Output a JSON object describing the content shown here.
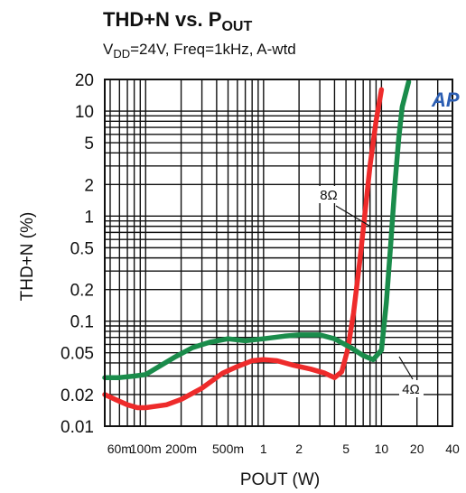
{
  "chart_data": {
    "type": "line",
    "title": "THD+N vs. P",
    "title_sub": "OUT",
    "subtitle": "V",
    "subtitle_sub": "DD",
    "subtitle_rest": "=24V, Freq=1kHz, A-wtd",
    "ylabel": "THD+N (%)",
    "xlabel": "POUT (W)",
    "xscale": "log",
    "yscale": "log",
    "xlim": [
      0.045,
      40
    ],
    "ylim": [
      0.01,
      20
    ],
    "grid": true,
    "yticks": [
      {
        "value": 20,
        "label": "20"
      },
      {
        "value": 10,
        "label": "10"
      },
      {
        "value": 5,
        "label": "5"
      },
      {
        "value": 2,
        "label": "2"
      },
      {
        "value": 1,
        "label": "1"
      },
      {
        "value": 0.5,
        "label": "0.5"
      },
      {
        "value": 0.2,
        "label": "0.2"
      },
      {
        "value": 0.1,
        "label": "0.1"
      },
      {
        "value": 0.05,
        "label": "0.05"
      },
      {
        "value": 0.02,
        "label": "0.02"
      },
      {
        "value": 0.01,
        "label": "0.01"
      }
    ],
    "xticks": [
      {
        "value": 0.06,
        "label": "60m"
      },
      {
        "value": 0.1,
        "label": "100m"
      },
      {
        "value": 0.2,
        "label": "200m"
      },
      {
        "value": 0.5,
        "label": "500m"
      },
      {
        "value": 1,
        "label": "1"
      },
      {
        "value": 2,
        "label": "2"
      },
      {
        "value": 5,
        "label": "5"
      },
      {
        "value": 10,
        "label": "10"
      },
      {
        "value": 20,
        "label": "20"
      },
      {
        "value": 40,
        "label": "40"
      }
    ],
    "series": [
      {
        "name": "8Ω",
        "color": "#ee2b2b",
        "x": [
          0.045,
          0.055,
          0.07,
          0.085,
          0.1,
          0.15,
          0.2,
          0.3,
          0.45,
          0.6,
          0.8,
          1.0,
          1.3,
          1.8,
          2.5,
          3.3,
          4.0,
          4.6,
          5.2,
          5.8,
          6.5,
          7.2,
          8.0,
          9.0,
          10.0
        ],
        "y": [
          0.02,
          0.018,
          0.016,
          0.015,
          0.015,
          0.016,
          0.018,
          0.023,
          0.032,
          0.037,
          0.042,
          0.043,
          0.042,
          0.038,
          0.035,
          0.032,
          0.029,
          0.033,
          0.055,
          0.12,
          0.35,
          1.0,
          3.0,
          8.0,
          16.0
        ]
      },
      {
        "name": "4Ω",
        "color": "#1a8c4b",
        "x": [
          0.045,
          0.06,
          0.08,
          0.1,
          0.13,
          0.18,
          0.25,
          0.35,
          0.5,
          0.7,
          1.0,
          1.5,
          2.0,
          3.0,
          4.0,
          5.5,
          7.0,
          8.5,
          10.0,
          11.0,
          12.0,
          13.0,
          14.0,
          15.0,
          17.0
        ],
        "y": [
          0.029,
          0.029,
          0.03,
          0.031,
          0.037,
          0.046,
          0.056,
          0.063,
          0.068,
          0.065,
          0.068,
          0.072,
          0.074,
          0.074,
          0.068,
          0.056,
          0.047,
          0.043,
          0.053,
          0.15,
          0.55,
          2.0,
          5.5,
          11.0,
          19.0
        ]
      }
    ],
    "annotations": [
      {
        "text": "8Ω",
        "series": "8Ω"
      },
      {
        "text": "4Ω",
        "series": "4Ω"
      }
    ],
    "logo": "AP"
  }
}
